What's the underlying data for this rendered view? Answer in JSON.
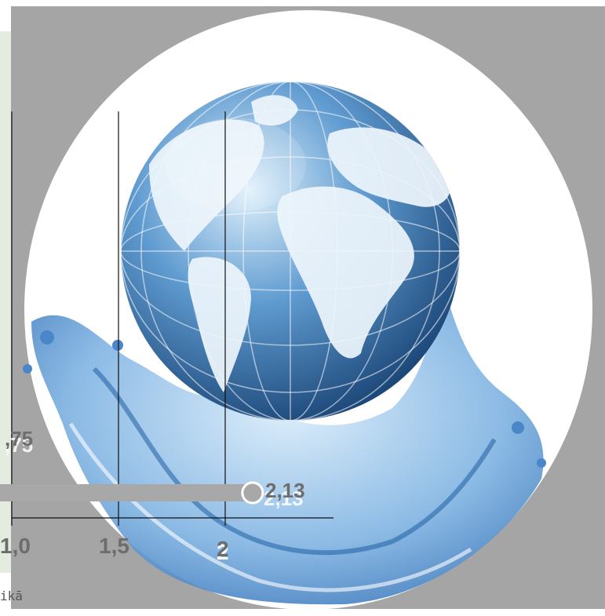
{
  "figure": {
    "caption_fragment": "ikā",
    "bar_value_label": "2,13",
    "bar_value_label_behind": "2,13",
    "left_value_label": ",75",
    "left_value_label_behind": ",75"
  },
  "chart_data": {
    "type": "bar",
    "orientation": "horizontal",
    "x_tick_labels": [
      "1,0",
      "1,5",
      "2"
    ],
    "x_ticks": [
      1.0,
      1.5,
      2.0
    ],
    "values": [
      2.13
    ],
    "value_labels": [
      "2,13"
    ],
    "grid": true
  },
  "colors": {
    "overlay": "#a5a5a5",
    "bar": "#a8a8a8",
    "label": "#6d6d6d",
    "water": "#4a86c8",
    "globe_dark": "#1f4f86"
  },
  "icons": [
    "globe-illustration",
    "water-splash-illustration"
  ]
}
